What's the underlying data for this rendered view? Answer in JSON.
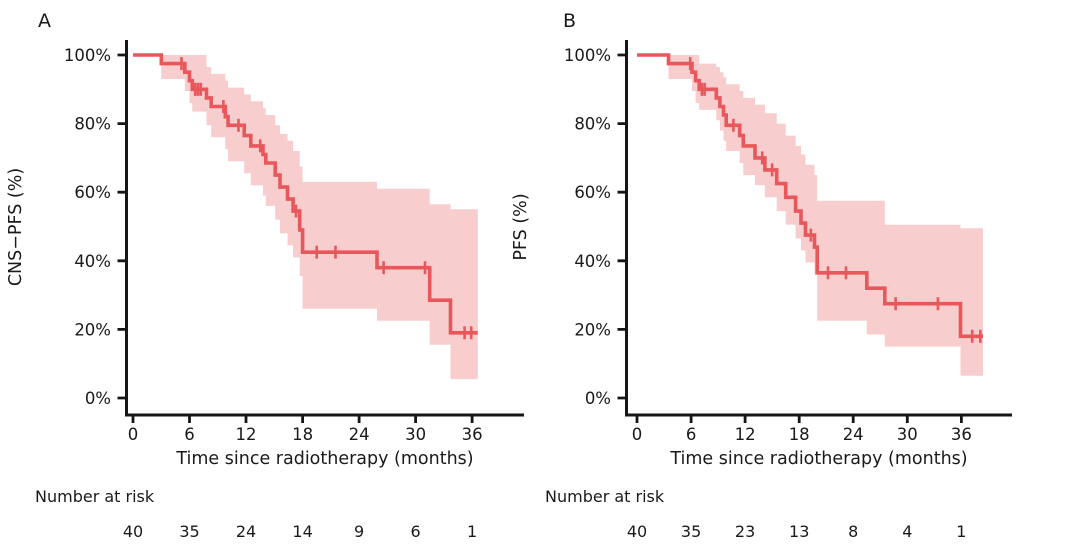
{
  "figure": {
    "background": "#ffffff",
    "text_color": "#1a1a1a",
    "axis_color": "#161616",
    "panels": [
      {
        "label": "A",
        "y_axis_title": "CNS−PFS (%)",
        "x_axis_title": "Time since radiotherapy (months)",
        "y_tick_labels": [
          "100%",
          "80%",
          "60%",
          "40%",
          "20%",
          "0%"
        ],
        "x_tick_labels": [
          "0",
          "6",
          "12",
          "18",
          "24",
          "30",
          "36"
        ],
        "number_at_risk_label": "Number at risk",
        "number_at_risk": [
          "40",
          "35",
          "24",
          "14",
          "9",
          "6",
          "1"
        ]
      },
      {
        "label": "B",
        "y_axis_title": "PFS (%)",
        "x_axis_title": "Time since radiotherapy (months)",
        "y_tick_labels": [
          "100%",
          "80%",
          "60%",
          "40%",
          "20%",
          "0%"
        ],
        "x_tick_labels": [
          "0",
          "6",
          "12",
          "18",
          "24",
          "30",
          "36"
        ],
        "number_at_risk_label": "Number at risk",
        "number_at_risk": [
          "40",
          "35",
          "23",
          "13",
          "8",
          "4",
          "1"
        ]
      }
    ]
  },
  "chart_data": [
    {
      "type": "line",
      "subtype": "kaplan-meier-step-with-confidence-band",
      "panel": "A",
      "title": "",
      "xlabel": "Time since radiotherapy (months)",
      "ylabel": "CNS−PFS (%)",
      "xlim": [
        0,
        41.5
      ],
      "ylim": [
        0,
        100
      ],
      "x_ticks": [
        0,
        6,
        12,
        18,
        24,
        30,
        36
      ],
      "y_ticks": [
        100,
        80,
        60,
        40,
        20,
        0
      ],
      "grid": false,
      "legend": "none",
      "curve_color": "#e8575b",
      "band_color": "#f8cdcd",
      "steps_percent": [
        [
          0,
          100,
          null,
          null
        ],
        [
          3.0,
          97.5,
          93,
          100
        ],
        [
          5.5,
          95,
          89.5,
          100
        ],
        [
          6.0,
          92.5,
          86,
          100
        ],
        [
          6.3,
          90,
          83.5,
          100
        ],
        [
          7.8,
          87.5,
          79.5,
          96.5
        ],
        [
          8.3,
          85,
          76,
          94.5
        ],
        [
          9.8,
          82,
          72.5,
          92.5
        ],
        [
          10.1,
          79.5,
          69,
          90.5
        ],
        [
          11.8,
          76.5,
          65.5,
          88.5
        ],
        [
          12.5,
          73.5,
          62,
          86.5
        ],
        [
          13.8,
          71,
          59,
          84.5
        ],
        [
          14.1,
          68.5,
          56,
          82.5
        ],
        [
          15.1,
          65,
          52,
          79.5
        ],
        [
          15.6,
          61.5,
          48,
          77
        ],
        [
          16.4,
          58,
          44.5,
          75
        ],
        [
          17.0,
          54.5,
          41,
          72
        ],
        [
          17.7,
          49,
          35.5,
          67.5
        ],
        [
          18.0,
          42.5,
          26,
          63
        ],
        [
          25.9,
          38,
          22.5,
          61
        ],
        [
          31.5,
          28.5,
          15.5,
          56.5
        ],
        [
          33.7,
          19,
          5.5,
          55
        ]
      ],
      "end_of_followup_months": 36.6,
      "censor_marks": [
        [
          5.15,
          97.5
        ],
        [
          6.6,
          90
        ],
        [
          6.9,
          90
        ],
        [
          7.2,
          90
        ],
        [
          9.6,
          85
        ],
        [
          11.2,
          79.5
        ],
        [
          13.5,
          73.5
        ],
        [
          17.3,
          54.5
        ],
        [
          19.5,
          42.5
        ],
        [
          21.5,
          42.5
        ],
        [
          26.6,
          38
        ],
        [
          31.0,
          38
        ],
        [
          35.2,
          19
        ],
        [
          35.9,
          19
        ]
      ],
      "number_at_risk": {
        "times": [
          0,
          6,
          12,
          18,
          24,
          30,
          36
        ],
        "counts": [
          40,
          35,
          24,
          14,
          9,
          6,
          1
        ]
      }
    },
    {
      "type": "line",
      "subtype": "kaplan-meier-step-with-confidence-band",
      "panel": "B",
      "title": "",
      "xlabel": "Time since radiotherapy (months)",
      "ylabel": "PFS (%)",
      "xlim": [
        0,
        41.5
      ],
      "ylim": [
        0,
        100
      ],
      "x_ticks": [
        0,
        6,
        12,
        18,
        24,
        30,
        36
      ],
      "y_ticks": [
        100,
        80,
        60,
        40,
        20,
        0
      ],
      "grid": false,
      "legend": "none",
      "curve_color": "#e8575b",
      "band_color": "#f8cdcd",
      "steps_percent": [
        [
          0,
          100,
          null,
          null
        ],
        [
          3.5,
          97.5,
          93,
          100
        ],
        [
          6.1,
          95,
          89.5,
          100
        ],
        [
          6.5,
          92.5,
          86,
          100
        ],
        [
          6.9,
          90,
          84,
          97.5
        ],
        [
          8.8,
          87.5,
          81,
          96.5
        ],
        [
          9.2,
          85,
          78,
          95
        ],
        [
          9.6,
          82.5,
          75,
          93.5
        ],
        [
          9.9,
          79.5,
          72,
          91.5
        ],
        [
          11.4,
          76.5,
          68.5,
          89.5
        ],
        [
          11.8,
          73.5,
          65,
          87.5
        ],
        [
          13.1,
          70,
          62,
          85.5
        ],
        [
          14.2,
          66.5,
          58.5,
          83
        ],
        [
          15.5,
          62.5,
          54.5,
          80
        ],
        [
          16.5,
          58.5,
          50.5,
          76.5
        ],
        [
          17.6,
          54.5,
          46.5,
          73.5
        ],
        [
          18.2,
          51,
          43,
          71
        ],
        [
          18.7,
          47.5,
          39.5,
          68
        ],
        [
          19.7,
          44,
          36,
          65
        ],
        [
          20.0,
          36.5,
          22.5,
          57.5
        ],
        [
          25.5,
          32,
          18.5,
          57.5
        ],
        [
          27.5,
          27.5,
          15,
          50.5
        ],
        [
          35.9,
          18,
          6.5,
          49.5
        ]
      ],
      "end_of_followup_months": 38.4,
      "censor_marks": [
        [
          5.9,
          97.5
        ],
        [
          7.2,
          90
        ],
        [
          7.5,
          90
        ],
        [
          10.7,
          79.5
        ],
        [
          13.9,
          70
        ],
        [
          15.0,
          66.5
        ],
        [
          19.3,
          47.5
        ],
        [
          21.2,
          36.5
        ],
        [
          23.2,
          36.5
        ],
        [
          28.7,
          27.5
        ],
        [
          33.4,
          27.5
        ],
        [
          37.2,
          18
        ],
        [
          38.1,
          18
        ]
      ],
      "number_at_risk": {
        "times": [
          0,
          6,
          12,
          18,
          24,
          30,
          36
        ],
        "counts": [
          40,
          35,
          23,
          13,
          8,
          4,
          1
        ]
      }
    }
  ]
}
